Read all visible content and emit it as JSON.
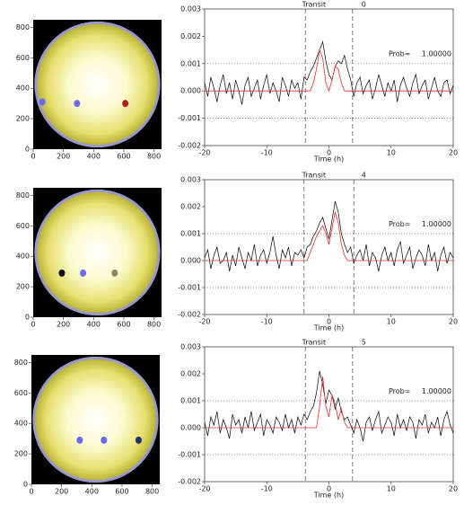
{
  "chart_data": [
    {
      "type": "scatter",
      "x": [
        290,
        610,
        60
      ],
      "y": [
        300,
        300,
        310
      ],
      "colors": [
        "#6a6af0",
        "#b02020",
        "#6a6af0"
      ],
      "xlim": [
        0,
        850
      ],
      "ylim": [
        0,
        850
      ],
      "xticks": [
        0,
        200,
        400,
        600,
        800
      ],
      "yticks": [
        0,
        200,
        400,
        600,
        800
      ]
    },
    {
      "type": "line",
      "title": "Transit",
      "title_number": "0",
      "prob_label": "Prob=",
      "prob_value": "1.00000",
      "xlabel": "Time (h)",
      "xlim": [
        -20,
        20
      ],
      "ylim": [
        -0.002,
        0.003
      ],
      "xticks": [
        -20,
        -10,
        0,
        10,
        20
      ],
      "yticks": [
        -0.002,
        -0.001,
        {
          "value": 0,
          "label": "0.000"
        },
        0.001,
        0.002,
        0.003
      ],
      "vlines": [
        -3.8,
        3.8
      ],
      "hlines": [
        -0.001,
        0.001
      ],
      "series": [
        {
          "color": "#000000",
          "x": [
            -20,
            -19.5,
            -19,
            -18.5,
            -18,
            -17.5,
            -17,
            -16.5,
            -16,
            -15.5,
            -15,
            -14.5,
            -14,
            -13.5,
            -13,
            -12.5,
            -12,
            -11.5,
            -11,
            -10.5,
            -10,
            -9.5,
            -9,
            -8.5,
            -8,
            -7.5,
            -7,
            -6.5,
            -6,
            -5.5,
            -5,
            -4.5,
            -4,
            -3.5,
            -3,
            -2.5,
            -2,
            -1.5,
            -1,
            -0.5,
            0,
            0.5,
            1,
            1.5,
            2,
            2.5,
            3,
            3.5,
            4,
            4.5,
            5,
            5.5,
            6,
            6.5,
            7,
            7.5,
            8,
            8.5,
            9,
            9.5,
            10,
            10.5,
            11,
            11.5,
            12,
            12.5,
            13,
            13.5,
            14,
            14.5,
            15,
            15.5,
            16,
            16.5,
            17,
            17.5,
            18,
            18.5,
            19,
            19.5,
            20
          ],
          "values": [
            0.0003,
            -0.0002,
            0.0005,
            0.0001,
            -0.0004,
            0.0002,
            0.0006,
            -0.0001,
            0.0003,
            -0.0003,
            0.0004,
            0.0,
            -0.0005,
            0.0002,
            0.0005,
            -0.0002,
            0.0001,
            0.0004,
            -0.0003,
            0.0002,
            0.0006,
            -0.0001,
            0.0003,
            0.0,
            -0.0004,
            0.0005,
            0.0002,
            -0.0002,
            0.0004,
            0.0001,
            0.0003,
            -0.0003,
            0.0005,
            0.0004,
            0.0007,
            0.0009,
            0.0012,
            0.0015,
            0.0018,
            0.0011,
            0.0006,
            0.0004,
            0.0009,
            0.0011,
            0.001,
            0.0013,
            0.0008,
            0.0004,
            -0.0002,
            0.0003,
            0.0005,
            -0.0001,
            0.0002,
            0.0004,
            -0.0003,
            0.0001,
            0.0006,
            0.0002,
            -0.0002,
            0.0003,
            0.0,
            0.0004,
            -0.0004,
            0.0002,
            0.0005,
            0.0001,
            -0.0002,
            0.0003,
            0.0006,
            -0.0001,
            0.0002,
            0.0004,
            -0.0003,
            0.0001,
            0.0005,
            0.0,
            -0.0002,
            0.0003,
            0.0004,
            -0.0001,
            0.0002
          ]
        },
        {
          "color": "#e03030",
          "x": [
            -20,
            -3,
            -2.5,
            -2,
            -1.5,
            -1,
            -0.5,
            0,
            0.5,
            1,
            1.5,
            2,
            2.5,
            3,
            20
          ],
          "values": [
            0,
            0,
            0.0003,
            0.0008,
            0.0015,
            0.0012,
            0.0003,
            0,
            0.0004,
            0.0009,
            0.0008,
            0.0003,
            0,
            0,
            0
          ]
        }
      ]
    },
    {
      "type": "scatter",
      "x": [
        190,
        330,
        540
      ],
      "y": [
        290,
        290,
        290
      ],
      "colors": [
        "#101010",
        "#6a6af0",
        "#8a8a60"
      ],
      "xlim": [
        0,
        850
      ],
      "ylim": [
        0,
        850
      ],
      "xticks": [
        0,
        200,
        400,
        600,
        800
      ],
      "yticks": [
        0,
        200,
        400,
        600,
        800
      ]
    },
    {
      "type": "line",
      "title": "Transit",
      "title_number": "4",
      "prob_label": "Prob=",
      "prob_value": "1.00000",
      "xlabel": "Time (h)",
      "xlim": [
        -20,
        20
      ],
      "ylim": [
        -0.002,
        0.003
      ],
      "xticks": [
        -20,
        -10,
        0,
        10,
        20
      ],
      "yticks": [
        -0.002,
        -0.001,
        {
          "value": 0,
          "label": "0.000"
        },
        0.001,
        0.002,
        0.003
      ],
      "vlines": [
        -4,
        4
      ],
      "hlines": [
        -0.001,
        0.001
      ],
      "series": [
        {
          "color": "#000000",
          "x": [
            -20,
            -19.5,
            -19,
            -18.5,
            -18,
            -17.5,
            -17,
            -16.5,
            -16,
            -15.5,
            -15,
            -14.5,
            -14,
            -13.5,
            -13,
            -12.5,
            -12,
            -11.5,
            -11,
            -10.5,
            -10,
            -9.5,
            -9,
            -8.5,
            -8,
            -7.5,
            -7,
            -6.5,
            -6,
            -5.5,
            -5,
            -4.5,
            -4,
            -3.5,
            -3,
            -2.5,
            -2,
            -1.5,
            -1,
            -0.5,
            0,
            0.5,
            1,
            1.5,
            2,
            2.5,
            3,
            3.5,
            4,
            4.5,
            5,
            5.5,
            6,
            6.5,
            7,
            7.5,
            8,
            8.5,
            9,
            9.5,
            10,
            10.5,
            11,
            11.5,
            12,
            12.5,
            13,
            13.5,
            14,
            14.5,
            15,
            15.5,
            16,
            16.5,
            17,
            17.5,
            18,
            18.5,
            19,
            19.5,
            20
          ],
          "values": [
            0.0001,
            0.0004,
            -0.0003,
            0.0002,
            0.0005,
            -0.0001,
            0.0,
            0.0003,
            -0.0004,
            0.0002,
            -0.0002,
            0.0005,
            0.0001,
            -0.0003,
            0.0003,
            0.0,
            0.0006,
            -0.0002,
            0.0002,
            0.0004,
            -0.0001,
            0.0003,
            0.0009,
            0.0002,
            -0.0003,
            0.0004,
            0.0001,
            0.0005,
            -0.0002,
            0.0003,
            0.0002,
            0.0004,
            0.0001,
            0.0005,
            0.0006,
            0.0009,
            0.0011,
            0.0014,
            0.0016,
            0.0012,
            0.0008,
            0.0015,
            0.0022,
            0.0018,
            0.001,
            0.0006,
            0.0003,
            0.0005,
            -0.0001,
            0.0002,
            0.0004,
            0.0,
            0.0006,
            -0.0002,
            0.0003,
            0.0001,
            -0.0004,
            0.0002,
            0.0005,
            0.0,
            0.0003,
            -0.0002,
            0.0004,
            0.0007,
            -0.0001,
            0.0002,
            0.0005,
            -0.0003,
            0.0001,
            0.0004,
            0.0002,
            -0.0002,
            0.0006,
            0.0,
            0.0003,
            -0.0004,
            0.0002,
            0.0005,
            -0.0001,
            0.0003,
            0.0001
          ]
        },
        {
          "color": "#e03030",
          "x": [
            -20,
            -3.5,
            -3,
            -2.5,
            -2,
            -1.5,
            -1,
            -0.5,
            0,
            0.5,
            1,
            1.5,
            2,
            2.5,
            3,
            3.5,
            20
          ],
          "values": [
            0,
            0,
            0.0003,
            0.0006,
            0.0009,
            0.0011,
            0.0013,
            0.001,
            0.0006,
            0.0012,
            0.0018,
            0.0014,
            0.0006,
            0.0002,
            0,
            0,
            0
          ]
        }
      ]
    },
    {
      "type": "scatter",
      "x": [
        320,
        480,
        710
      ],
      "y": [
        290,
        290,
        290
      ],
      "colors": [
        "#6a6af0",
        "#6a6af0",
        "#203070"
      ],
      "xlim": [
        0,
        850
      ],
      "ylim": [
        0,
        850
      ],
      "xticks": [
        0,
        200,
        400,
        600,
        800
      ],
      "yticks": [
        0,
        200,
        400,
        600,
        800
      ]
    },
    {
      "type": "line",
      "title": "Transit",
      "title_number": "5",
      "prob_label": "Prob=",
      "prob_value": "1.00000",
      "xlabel": "Time (h)",
      "xlim": [
        -20,
        20
      ],
      "ylim": [
        -0.002,
        0.003
      ],
      "xticks": [
        -20,
        -10,
        0,
        10,
        20
      ],
      "yticks": [
        -0.002,
        -0.001,
        {
          "value": 0,
          "label": "0.000"
        },
        0.001,
        0.002,
        0.003
      ],
      "vlines": [
        -3.8,
        3.8
      ],
      "hlines": [
        -0.001,
        0.001
      ],
      "series": [
        {
          "color": "#000000",
          "x": [
            -20,
            -19.5,
            -19,
            -18.5,
            -18,
            -17.5,
            -17,
            -16.5,
            -16,
            -15.5,
            -15,
            -14.5,
            -14,
            -13.5,
            -13,
            -12.5,
            -12,
            -11.5,
            -11,
            -10.5,
            -10,
            -9.5,
            -9,
            -8.5,
            -8,
            -7.5,
            -7,
            -6.5,
            -6,
            -5.5,
            -5,
            -4.5,
            -4,
            -3.5,
            -3,
            -2.5,
            -2,
            -1.5,
            -1,
            -0.5,
            0,
            0.5,
            1,
            1.5,
            2,
            2.5,
            3,
            3.5,
            4,
            4.5,
            5,
            5.5,
            6,
            6.5,
            7,
            7.5,
            8,
            8.5,
            9,
            9.5,
            10,
            10.5,
            11,
            11.5,
            12,
            12.5,
            13,
            13.5,
            14,
            14.5,
            15,
            15.5,
            16,
            16.5,
            17,
            17.5,
            18,
            18.5,
            19,
            19.5,
            20
          ],
          "values": [
            0.0002,
            -0.0003,
            0.0004,
            0.0001,
            0.0006,
            -0.0002,
            0.0003,
            0.0,
            -0.0004,
            0.0005,
            0.0001,
            0.0003,
            -0.0002,
            0.0004,
            0.0,
            0.0006,
            -0.0001,
            0.0002,
            0.0005,
            -0.0003,
            0.0003,
            0.0001,
            -0.0002,
            0.0004,
            0.0002,
            -0.0001,
            0.0005,
            0.0,
            0.0003,
            -0.0002,
            0.0004,
            0.0001,
            0.0005,
            0.0003,
            0.0006,
            0.0008,
            0.0013,
            0.0021,
            0.0016,
            0.0009,
            0.0014,
            0.0012,
            0.0007,
            0.0011,
            0.0006,
            0.0003,
            0.0004,
            0.0001,
            -0.0002,
            0.0003,
            0.0,
            -0.0005,
            0.0002,
            0.0004,
            -0.0001,
            0.0003,
            0.0006,
            -0.0002,
            0.0001,
            0.0004,
            0.0002,
            -0.0003,
            0.0005,
            0.0,
            0.0003,
            -0.0001,
            0.0004,
            0.0002,
            -0.0004,
            0.0003,
            0.0001,
            0.0005,
            -0.0002,
            0.0002,
            0.0,
            0.0004,
            -0.0003,
            0.0003,
            0.0006,
            0.0001,
            -0.0002
          ]
        },
        {
          "color": "#e03030",
          "x": [
            -20,
            -2,
            -1.5,
            -1,
            -0.5,
            0,
            0.5,
            1,
            1.5,
            2,
            2.5,
            3,
            20
          ],
          "values": [
            0,
            0,
            0.0008,
            0.0019,
            0.0008,
            0.0004,
            0.0012,
            0.0009,
            0.0003,
            0.0007,
            0.0002,
            0,
            0
          ]
        }
      ]
    }
  ]
}
